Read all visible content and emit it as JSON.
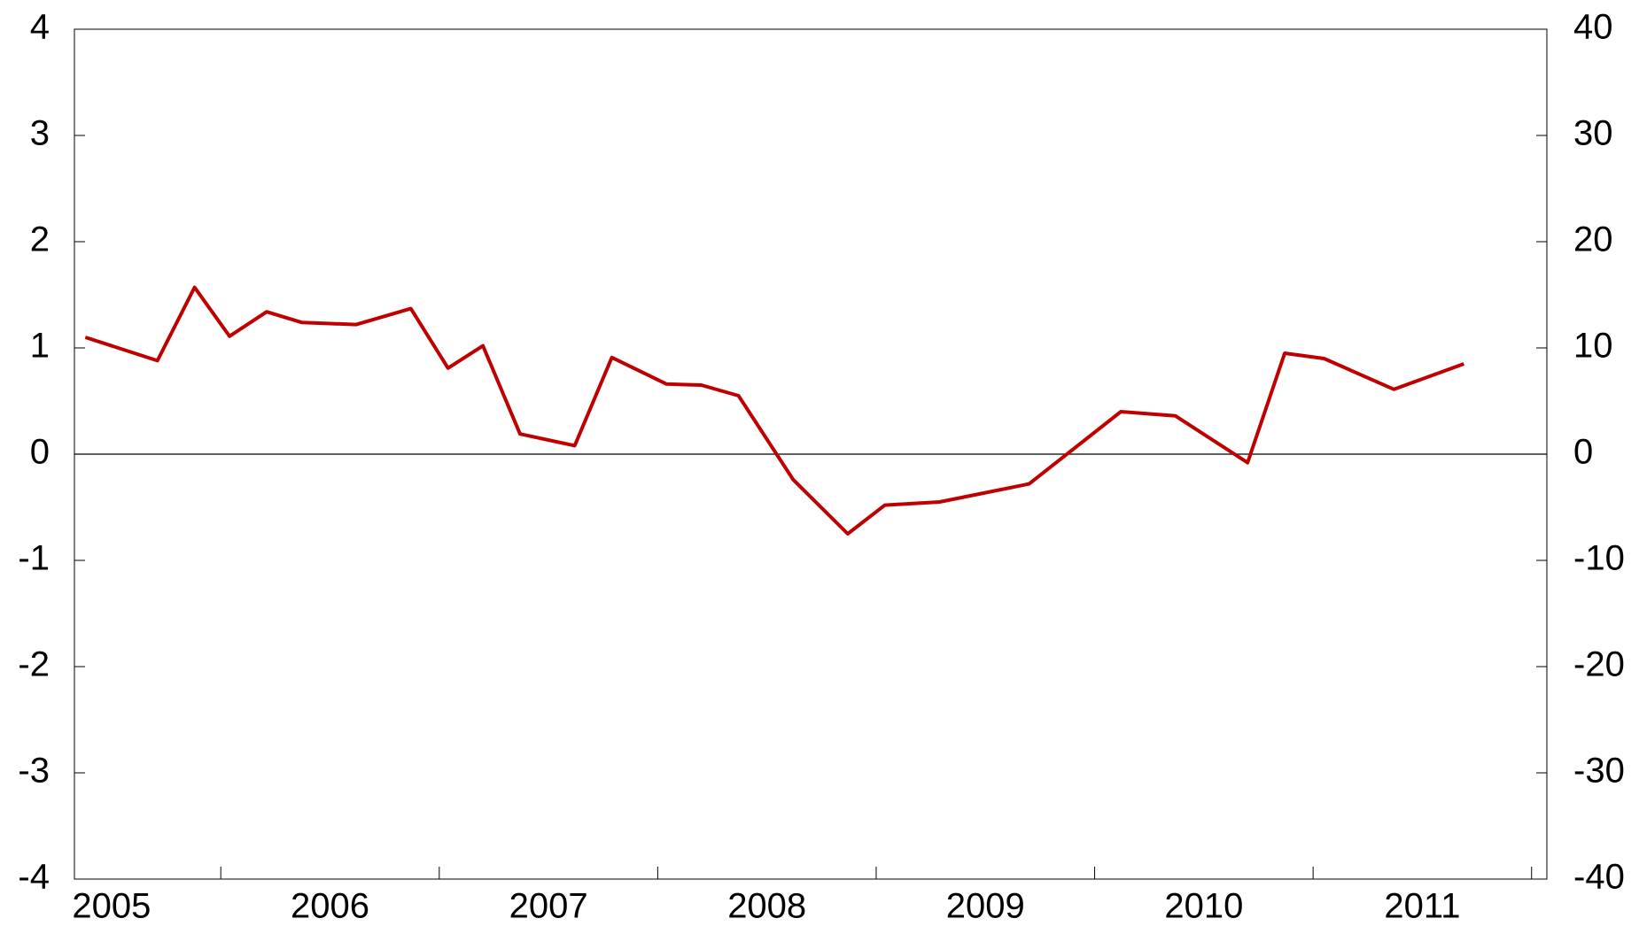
{
  "chart_data": {
    "type": "line",
    "x": [
      2005.38,
      2005.71,
      2005.88,
      2006.04,
      2006.21,
      2006.37,
      2006.62,
      2006.87,
      2007.04,
      2007.2,
      2007.37,
      2007.62,
      2007.79,
      2008.04,
      2008.2,
      2008.37,
      2008.62,
      2008.87,
      2009.04,
      2009.29,
      2009.7,
      2010.12,
      2010.37,
      2010.7,
      2010.87,
      2011.05,
      2011.37,
      2011.69
    ],
    "series": [
      {
        "color": "#c00000",
        "values": [
          1.1,
          0.88,
          1.57,
          1.11,
          1.34,
          1.24,
          1.22,
          1.37,
          0.81,
          1.02,
          0.19,
          0.08,
          0.91,
          0.66,
          0.65,
          0.55,
          -0.24,
          -0.75,
          -0.48,
          -0.45,
          -0.28,
          0.4,
          0.36,
          -0.08,
          0.95,
          0.9,
          0.61,
          0.85
        ]
      }
    ],
    "xlim": [
      2005.33,
      2012.07
    ],
    "xticks": [
      {
        "value": 2005.5,
        "label": "2005"
      },
      {
        "value": 2006.5,
        "label": "2006"
      },
      {
        "value": 2007.5,
        "label": "2007"
      },
      {
        "value": 2008.5,
        "label": "2008"
      },
      {
        "value": 2009.5,
        "label": "2009"
      },
      {
        "value": 2010.5,
        "label": "2010"
      },
      {
        "value": 2011.5,
        "label": "2011"
      }
    ],
    "ylim": [
      -4,
      4
    ],
    "yticks": [
      -4,
      -3,
      -2,
      -1,
      0,
      1,
      2,
      3,
      4
    ],
    "y2lim": [
      -40,
      40
    ],
    "y2ticks": [
      -40,
      -30,
      -20,
      -10,
      0,
      10,
      20,
      30,
      40
    ]
  }
}
